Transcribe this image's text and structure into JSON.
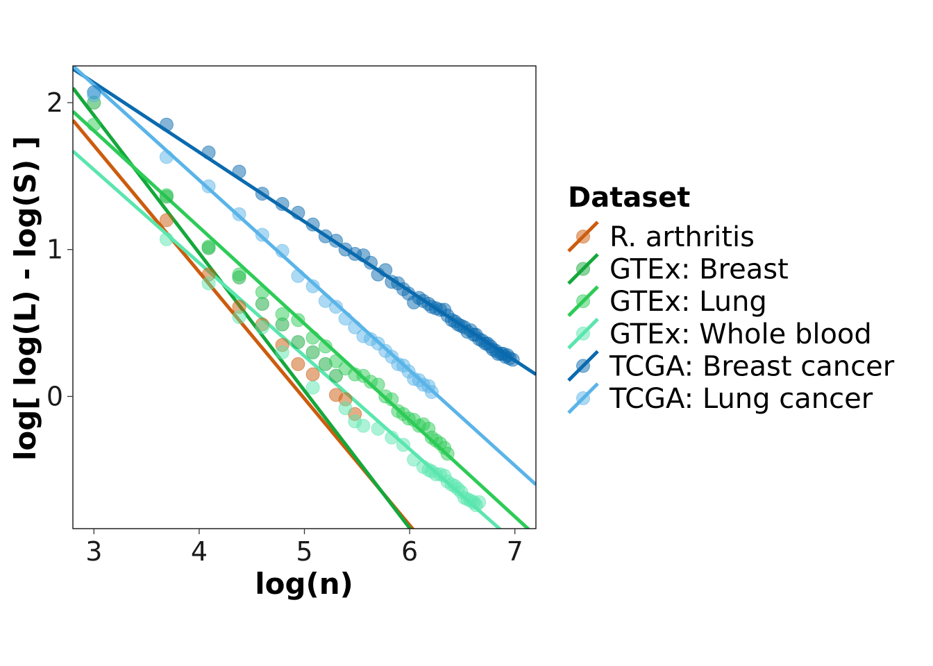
{
  "chart_data": {
    "type": "scatter",
    "xlabel": "log(n)",
    "ylabel": "log[ log(L) - log(S) ]",
    "xlim": [
      2.8,
      7.2
    ],
    "ylim": [
      -0.9,
      2.25
    ],
    "xticks": [
      3,
      4,
      5,
      6,
      7
    ],
    "yticks": [
      0,
      1,
      2
    ],
    "grid": false,
    "legend": {
      "title": "Dataset",
      "position": "right"
    },
    "series": [
      {
        "name": "R. arthritis",
        "color": "#CC5C0E",
        "fit": {
          "x": [
            2.8,
            7.2
          ],
          "y": [
            1.88,
            -1.91
          ]
        },
        "points": [
          {
            "x": 3.69,
            "y": 1.2
          },
          {
            "x": 4.09,
            "y": 0.83
          },
          {
            "x": 4.38,
            "y": 0.61
          },
          {
            "x": 4.6,
            "y": 0.49
          },
          {
            "x": 4.79,
            "y": 0.35
          },
          {
            "x": 4.94,
            "y": 0.22
          },
          {
            "x": 5.08,
            "y": 0.15
          },
          {
            "x": 5.3,
            "y": 0.01
          },
          {
            "x": 5.39,
            "y": -0.02
          },
          {
            "x": 5.48,
            "y": -0.12
          }
        ]
      },
      {
        "name": "GTEx: Breast",
        "color": "#14A83B",
        "fit": {
          "x": [
            2.8,
            7.2
          ],
          "y": [
            2.1,
            -2.02
          ]
        },
        "points": [
          {
            "x": 3.0,
            "y": 2.0
          },
          {
            "x": 3.69,
            "y": 1.36
          },
          {
            "x": 4.09,
            "y": 1.01
          },
          {
            "x": 4.38,
            "y": 0.81
          },
          {
            "x": 4.6,
            "y": 0.63
          },
          {
            "x": 4.79,
            "y": 0.49
          },
          {
            "x": 4.94,
            "y": 0.37
          },
          {
            "x": 5.08,
            "y": 0.3
          },
          {
            "x": 5.2,
            "y": 0.22
          },
          {
            "x": 5.3,
            "y": 0.14
          }
        ]
      },
      {
        "name": "GTEx: Lung",
        "color": "#2DCB57",
        "fit": {
          "x": [
            2.8,
            7.2
          ],
          "y": [
            1.94,
            -0.95
          ]
        },
        "points": [
          {
            "x": 3.0,
            "y": 1.85
          },
          {
            "x": 3.69,
            "y": 1.37
          },
          {
            "x": 4.09,
            "y": 1.02
          },
          {
            "x": 4.38,
            "y": 0.83
          },
          {
            "x": 4.6,
            "y": 0.71
          },
          {
            "x": 4.79,
            "y": 0.56
          },
          {
            "x": 4.94,
            "y": 0.52
          },
          {
            "x": 5.08,
            "y": 0.4
          },
          {
            "x": 5.2,
            "y": 0.34
          },
          {
            "x": 5.3,
            "y": 0.24
          },
          {
            "x": 5.39,
            "y": 0.19
          },
          {
            "x": 5.48,
            "y": 0.15
          },
          {
            "x": 5.56,
            "y": 0.14
          },
          {
            "x": 5.63,
            "y": 0.1
          },
          {
            "x": 5.7,
            "y": 0.08
          },
          {
            "x": 5.77,
            "y": 0.0
          },
          {
            "x": 5.83,
            "y": -0.02
          },
          {
            "x": 5.89,
            "y": -0.1
          },
          {
            "x": 5.94,
            "y": -0.12
          },
          {
            "x": 5.99,
            "y": -0.15
          },
          {
            "x": 6.04,
            "y": -0.16
          },
          {
            "x": 6.09,
            "y": -0.2
          },
          {
            "x": 6.13,
            "y": -0.19
          },
          {
            "x": 6.18,
            "y": -0.22
          },
          {
            "x": 6.21,
            "y": -0.28
          },
          {
            "x": 6.25,
            "y": -0.3
          },
          {
            "x": 6.29,
            "y": -0.32
          },
          {
            "x": 6.33,
            "y": -0.35
          },
          {
            "x": 6.36,
            "y": -0.39
          }
        ]
      },
      {
        "name": "GTEx: Whole blood",
        "color": "#5AE6AE",
        "fit": {
          "x": [
            2.8,
            7.2
          ],
          "y": [
            1.67,
            -1.12
          ]
        },
        "points": [
          {
            "x": 3.69,
            "y": 1.07
          },
          {
            "x": 4.09,
            "y": 0.77
          },
          {
            "x": 4.38,
            "y": 0.54
          },
          {
            "x": 4.6,
            "y": 0.47
          },
          {
            "x": 4.79,
            "y": 0.3
          },
          {
            "x": 5.08,
            "y": 0.06
          },
          {
            "x": 5.39,
            "y": -0.08
          },
          {
            "x": 5.48,
            "y": -0.17
          },
          {
            "x": 5.56,
            "y": -0.2
          },
          {
            "x": 5.7,
            "y": -0.22
          },
          {
            "x": 5.83,
            "y": -0.28
          },
          {
            "x": 5.94,
            "y": -0.33
          },
          {
            "x": 6.04,
            "y": -0.43
          },
          {
            "x": 6.13,
            "y": -0.48
          },
          {
            "x": 6.18,
            "y": -0.5
          },
          {
            "x": 6.21,
            "y": -0.51
          },
          {
            "x": 6.25,
            "y": -0.53
          },
          {
            "x": 6.29,
            "y": -0.53
          },
          {
            "x": 6.33,
            "y": -0.54
          },
          {
            "x": 6.36,
            "y": -0.58
          },
          {
            "x": 6.4,
            "y": -0.6
          },
          {
            "x": 6.43,
            "y": -0.61
          },
          {
            "x": 6.46,
            "y": -0.63
          },
          {
            "x": 6.49,
            "y": -0.65
          },
          {
            "x": 6.52,
            "y": -0.69
          },
          {
            "x": 6.55,
            "y": -0.7
          },
          {
            "x": 6.58,
            "y": -0.71
          },
          {
            "x": 6.61,
            "y": -0.72
          },
          {
            "x": 6.63,
            "y": -0.74
          },
          {
            "x": 6.66,
            "y": -0.72
          }
        ]
      },
      {
        "name": "TCGA: Breast cancer",
        "color": "#0A6AAE",
        "fit": {
          "x": [
            2.8,
            7.2
          ],
          "y": [
            2.23,
            0.15
          ]
        },
        "points": [
          {
            "x": 3.0,
            "y": 2.07
          },
          {
            "x": 3.69,
            "y": 1.85
          },
          {
            "x": 4.09,
            "y": 1.66
          },
          {
            "x": 4.38,
            "y": 1.53
          },
          {
            "x": 4.6,
            "y": 1.38
          },
          {
            "x": 4.79,
            "y": 1.31
          },
          {
            "x": 4.94,
            "y": 1.25
          },
          {
            "x": 5.08,
            "y": 1.17
          },
          {
            "x": 5.2,
            "y": 1.09
          },
          {
            "x": 5.3,
            "y": 1.06
          },
          {
            "x": 5.39,
            "y": 1.0
          },
          {
            "x": 5.48,
            "y": 0.97
          },
          {
            "x": 5.56,
            "y": 0.96
          },
          {
            "x": 5.63,
            "y": 0.91
          },
          {
            "x": 5.7,
            "y": 0.83
          },
          {
            "x": 5.77,
            "y": 0.86
          },
          {
            "x": 5.83,
            "y": 0.78
          },
          {
            "x": 5.89,
            "y": 0.77
          },
          {
            "x": 5.94,
            "y": 0.73
          },
          {
            "x": 5.99,
            "y": 0.7
          },
          {
            "x": 6.04,
            "y": 0.64
          },
          {
            "x": 6.09,
            "y": 0.67
          },
          {
            "x": 6.13,
            "y": 0.65
          },
          {
            "x": 6.18,
            "y": 0.63
          },
          {
            "x": 6.21,
            "y": 0.61
          },
          {
            "x": 6.25,
            "y": 0.6
          },
          {
            "x": 6.29,
            "y": 0.59
          },
          {
            "x": 6.33,
            "y": 0.59
          },
          {
            "x": 6.36,
            "y": 0.55
          },
          {
            "x": 6.4,
            "y": 0.52
          },
          {
            "x": 6.43,
            "y": 0.51
          },
          {
            "x": 6.46,
            "y": 0.49
          },
          {
            "x": 6.49,
            "y": 0.48
          },
          {
            "x": 6.52,
            "y": 0.47
          },
          {
            "x": 6.55,
            "y": 0.44
          },
          {
            "x": 6.58,
            "y": 0.45
          },
          {
            "x": 6.61,
            "y": 0.42
          },
          {
            "x": 6.63,
            "y": 0.42
          },
          {
            "x": 6.66,
            "y": 0.39
          },
          {
            "x": 6.69,
            "y": 0.38
          },
          {
            "x": 6.72,
            "y": 0.36
          },
          {
            "x": 6.74,
            "y": 0.36
          },
          {
            "x": 6.77,
            "y": 0.34
          },
          {
            "x": 6.79,
            "y": 0.32
          },
          {
            "x": 6.82,
            "y": 0.31
          },
          {
            "x": 6.84,
            "y": 0.29
          },
          {
            "x": 6.87,
            "y": 0.29
          },
          {
            "x": 6.89,
            "y": 0.29
          },
          {
            "x": 6.91,
            "y": 0.27
          },
          {
            "x": 6.93,
            "y": 0.28
          },
          {
            "x": 6.95,
            "y": 0.26
          },
          {
            "x": 6.98,
            "y": 0.25
          }
        ]
      },
      {
        "name": "TCGA: Lung cancer",
        "color": "#5AB4E8",
        "fit": {
          "x": [
            2.8,
            7.2
          ],
          "y": [
            2.25,
            -0.6
          ]
        },
        "points": [
          {
            "x": 3.0,
            "y": 2.05
          },
          {
            "x": 3.69,
            "y": 1.63
          },
          {
            "x": 4.09,
            "y": 1.43
          },
          {
            "x": 4.38,
            "y": 1.24
          },
          {
            "x": 4.6,
            "y": 1.1
          },
          {
            "x": 4.79,
            "y": 0.99
          },
          {
            "x": 4.94,
            "y": 0.82
          },
          {
            "x": 5.08,
            "y": 0.75
          },
          {
            "x": 5.2,
            "y": 0.65
          },
          {
            "x": 5.3,
            "y": 0.61
          },
          {
            "x": 5.39,
            "y": 0.53
          },
          {
            "x": 5.48,
            "y": 0.47
          },
          {
            "x": 5.56,
            "y": 0.41
          },
          {
            "x": 5.63,
            "y": 0.39
          },
          {
            "x": 5.7,
            "y": 0.36
          },
          {
            "x": 5.77,
            "y": 0.31
          },
          {
            "x": 5.83,
            "y": 0.27
          },
          {
            "x": 5.89,
            "y": 0.22
          },
          {
            "x": 5.94,
            "y": 0.21
          },
          {
            "x": 5.99,
            "y": 0.17
          },
          {
            "x": 6.04,
            "y": 0.12
          },
          {
            "x": 6.09,
            "y": 0.11
          },
          {
            "x": 6.13,
            "y": 0.08
          },
          {
            "x": 6.18,
            "y": 0.07
          },
          {
            "x": 6.21,
            "y": 0.03
          }
        ]
      }
    ]
  }
}
